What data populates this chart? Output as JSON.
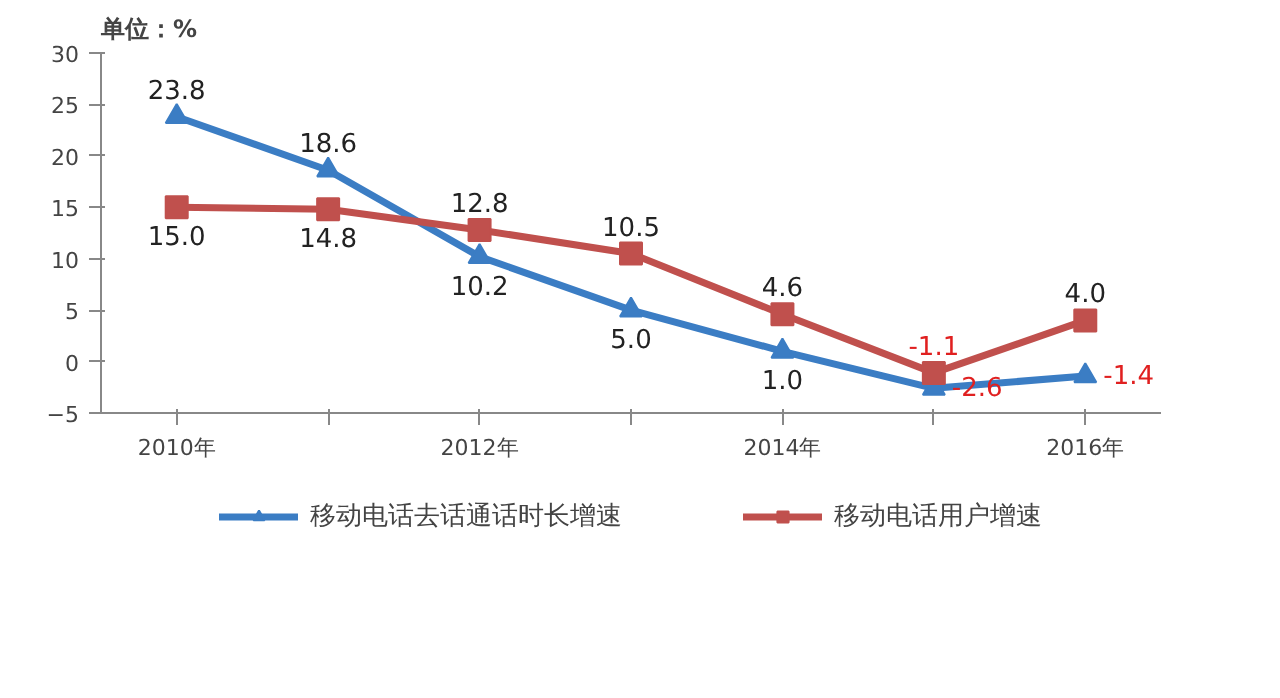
{
  "chart_data": {
    "type": "line",
    "ylabel": "单位：%",
    "categories": [
      "2010年",
      null,
      "2012年",
      null,
      "2014年",
      null,
      "2016年"
    ],
    "series": [
      {
        "name": "移动电话去话通话时长增速",
        "color": "#3b7dc4",
        "marker": "triangle",
        "values": [
          23.8,
          18.6,
          10.2,
          5.0,
          1.0,
          -2.6,
          -1.4
        ],
        "value_labels": [
          "23.8",
          "18.6",
          "10.2",
          "5.0",
          "1.0",
          "-2.6",
          "-1.4"
        ]
      },
      {
        "name": "移动电话用户增速",
        "color": "#c0504d",
        "marker": "square",
        "values": [
          15.0,
          14.8,
          12.8,
          10.5,
          4.6,
          -1.1,
          4.0
        ],
        "value_labels": [
          "15.0",
          "14.8",
          "12.8",
          "10.5",
          "4.6",
          "-1.1",
          "4.0"
        ]
      }
    ],
    "ylim": [
      -5,
      30
    ],
    "yticks": [
      {
        "value": -5,
        "label": "−5"
      },
      0,
      5,
      10,
      15,
      20,
      25,
      30
    ],
    "grid": false,
    "legend": "bottom",
    "line_style": "solid"
  }
}
